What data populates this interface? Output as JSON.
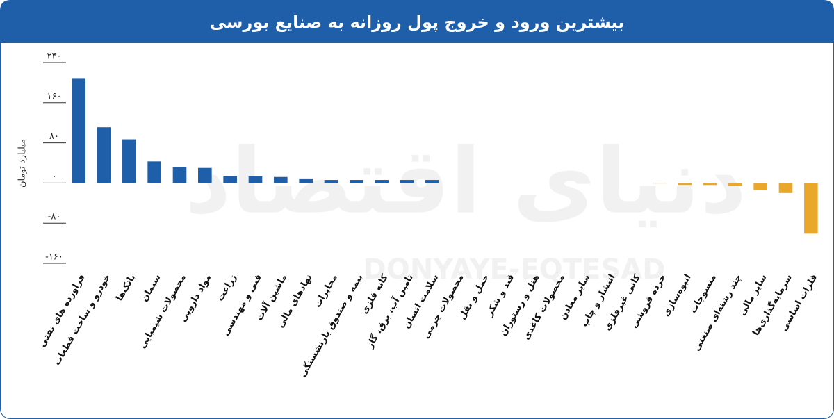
{
  "chart_data": {
    "type": "bar",
    "title": "بیشترین ورود و خروج پول روزانه به صنایع بورسی",
    "y_label": "میلیارد تومان",
    "watermark": "دنیای اقتصاد",
    "watermark_latin": "DONYAYE-EQTESAD",
    "categories": [
      "فراورده های نفتی",
      "خودرو و ساخت قطعات",
      "بانک‌ها",
      "سیمان",
      "محصولات شیمیایی",
      "مواد دارویی",
      "زراعت",
      "فنی و مهندسی",
      "ماشین آلات",
      "نهادهای مالی",
      "مخابرات",
      "بیمه و صندوق بازنشستگی",
      "کانه فلزی",
      "تامین آب، برق، گاز",
      "سلامت انسان",
      "محصولات چرمی",
      "حمل و نقل",
      "قند و شکر",
      "هتل و رستوران",
      "محصولات کاغذی",
      "سایر معادن",
      "انتشار و چاپ",
      "کانی غیرفلزی",
      "خرده فروشی",
      "انبوه‌سازی",
      "منسوجات",
      "چند رشته‌ای صنعتی",
      "سایر مالی",
      "سرمایه‌گذاری‌ها",
      "فلزات اساسی"
    ],
    "values": [
      209,
      111,
      87,
      43,
      32,
      30,
      14,
      13,
      12,
      9,
      6,
      6,
      6,
      6,
      6,
      0,
      0,
      0,
      0,
      0,
      0,
      0,
      0,
      -1,
      -4,
      -4,
      -5,
      -14,
      -20,
      -101
    ],
    "positive_color": "#1f5ea8",
    "negative_color": "#e9a82b",
    "ylim": [
      -160,
      240
    ],
    "yticks": [
      {
        "value": -160,
        "label": "-۱۶۰"
      },
      {
        "value": -80,
        "label": "-۸۰"
      },
      {
        "value": 0,
        "label": "۰"
      },
      {
        "value": 80,
        "label": "۸۰"
      },
      {
        "value": 160,
        "label": "۱۶۰"
      },
      {
        "value": 240,
        "label": "۲۴۰"
      }
    ]
  }
}
